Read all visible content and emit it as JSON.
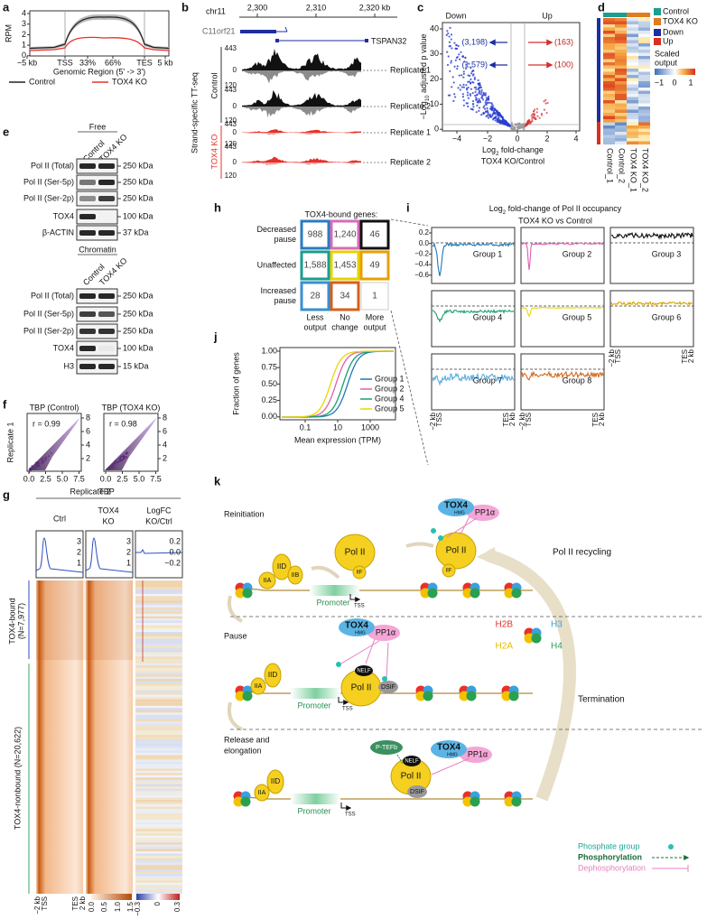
{
  "a": {
    "letter": "a",
    "ylabel": "RPM",
    "yticks": [
      "4",
      "3",
      "2",
      "1",
      "0"
    ],
    "xticks": [
      "−5 kb",
      "TSS",
      "33%",
      "66%",
      "TES",
      "5 kb"
    ],
    "xlabel": "Genomic Region (5' -> 3')",
    "legend": [
      {
        "name": "Control",
        "color": "#222222"
      },
      {
        "name": "TOX4 KO",
        "color": "#e8302a"
      }
    ]
  },
  "b": {
    "letter": "b",
    "chrom": "chr11",
    "coords": [
      "2,300",
      "2,310",
      "2,320 kb"
    ],
    "genes": [
      "C11orf21",
      "TSPAN32"
    ],
    "assay": "Strand-specific TT-seq",
    "groups": [
      "Control",
      "TOX4 KO"
    ],
    "tracks": [
      {
        "max": "443",
        "zero": "0",
        "min": "120",
        "name": "Replicate 1"
      },
      {
        "max": "443",
        "zero": "0",
        "min": "120",
        "name": "Replicate 2"
      },
      {
        "max": "443",
        "zero": "0",
        "min": "120",
        "name": "Replicate 1"
      },
      {
        "max": "443",
        "zero": "0",
        "min": "120",
        "name": "Replicate 2"
      }
    ]
  },
  "c": {
    "letter": "c",
    "down": "Down",
    "up": "Up",
    "ylabel": [
      "−Log",
      "10",
      " adjusted p value"
    ],
    "yticks": [
      "40",
      "30",
      "20",
      "10",
      "0"
    ],
    "xticks": [
      "−4",
      "−2",
      "0",
      "2",
      "4"
    ],
    "xlabel": [
      "Log",
      "2",
      " fold-change"
    ],
    "xlabel2": "TOX4 KO/Control",
    "counts": [
      "(3,198)",
      "(163)",
      "(1,579)",
      "(100)"
    ]
  },
  "d": {
    "letter": "d",
    "legend": [
      "Control",
      "TOX4 KO",
      "Down",
      "Up"
    ],
    "scale_title": [
      "Scaled",
      "output"
    ],
    "scale_ticks": [
      "−1",
      "0",
      "1"
    ],
    "columns": [
      "Control_1",
      "Control_2",
      "TOX4 KO_1",
      "TOX4 KO_2"
    ]
  },
  "e": {
    "letter": "e",
    "blots": [
      {
        "title": "Free",
        "lanes": [
          "Control",
          "TOX4 KO"
        ],
        "rows": [
          {
            "name": "Pol II (Total)",
            "size": "250 kDa"
          },
          {
            "name": "Pol II (Ser-5p)",
            "size": "250 kDa"
          },
          {
            "name": "Pol II (Ser-2p)",
            "size": "250 kDa"
          },
          {
            "name": "TOX4",
            "size": "100 kDa"
          },
          {
            "name": "β-ACTIN",
            "size": "37 kDa"
          }
        ]
      },
      {
        "title": "Chromatin",
        "lanes": [
          "Control",
          "TOX4 KO"
        ],
        "rows": [
          {
            "name": "Pol II (Total)",
            "size": "250 kDa"
          },
          {
            "name": "Pol II (Ser-5p)",
            "size": "250 kDa"
          },
          {
            "name": "Pol II (Ser-2p)",
            "size": "250 kDa"
          },
          {
            "name": "TOX4",
            "size": "100 kDa"
          },
          {
            "name": "H3",
            "size": "15 kDa"
          }
        ]
      }
    ]
  },
  "f": {
    "letter": "f",
    "plots": [
      {
        "title": "TBP (Control)",
        "r": "r = 0.99"
      },
      {
        "title": "TBP (TOX4 KO)",
        "r": "r = 0.98"
      }
    ],
    "yticks": [
      "2",
      "4",
      "6",
      "8"
    ],
    "xticks": [
      "0.0",
      "2.5",
      "5.0",
      "7.5"
    ],
    "ylabel": "Replicate 1",
    "xlabel": "Replicate 2"
  },
  "g": {
    "letter": "g",
    "factor": "TBP",
    "columns": [
      [
        "Ctrl"
      ],
      [
        "TOX4",
        "KO"
      ],
      [
        "LogFC",
        "KO/Ctrl"
      ]
    ],
    "profile_ticks": [
      [
        "3",
        "2",
        "1"
      ],
      [
        "0.2",
        "0.0",
        "−0.2"
      ]
    ],
    "rows": [
      [
        "TOX4-bound",
        "(N=7,977)"
      ],
      [
        "TOX4-nonbound (N=20,622)"
      ]
    ],
    "axis": [
      "−2 kb",
      "TSS",
      "TES",
      "2 kb"
    ],
    "scales": [
      [
        "0.0",
        "0.5",
        "1.0",
        "1.5"
      ],
      [
        "−0.3",
        "0",
        "0.3"
      ]
    ]
  },
  "h": {
    "letter": "h",
    "title": "TOX4-bound genes:",
    "rows": [
      [
        "Decreased",
        "pause"
      ],
      [
        "Unaffected"
      ],
      [
        "Increased",
        "pause"
      ]
    ],
    "cols": [
      [
        "Less",
        "output"
      ],
      [
        "No",
        "change"
      ],
      [
        "More",
        "output"
      ]
    ],
    "cells": [
      [
        "988",
        "1,240",
        "46"
      ],
      [
        "1,588",
        "1,453",
        "49"
      ],
      [
        "28",
        "34",
        "1"
      ]
    ]
  },
  "i": {
    "letter": "i",
    "title": [
      "Log",
      "2",
      " fold-change of Pol II occupancy"
    ],
    "subtitle": "TOX4 KO vs Control",
    "yticks": [
      "0.2",
      "0.0",
      "−0.2",
      "−0.4",
      "−0.6"
    ],
    "groups": [
      {
        "name": "Group 1",
        "color": "#1f78b4"
      },
      {
        "name": "Group 2",
        "color": "#e05fb0"
      },
      {
        "name": "Group 3",
        "color": "#111111"
      },
      {
        "name": "Group 4",
        "color": "#1a9e6f"
      },
      {
        "name": "Group 5",
        "color": "#e8d800"
      },
      {
        "name": "Group 6",
        "color": "#d9a300"
      },
      {
        "name": "Group 7",
        "color": "#5aace0"
      },
      {
        "name": "Group 8",
        "color": "#d2691e"
      }
    ],
    "axis": [
      "−2 kb",
      "TSS",
      "TES",
      "2 kb"
    ]
  },
  "j": {
    "letter": "j",
    "ylabel": "Fraction of genes",
    "yticks": [
      "1.00",
      "0.75",
      "0.50",
      "0.25",
      "0.00"
    ],
    "xticks": [
      "0.1",
      "10",
      "1000"
    ],
    "xlabel": "Mean expression (TPM)",
    "legend": [
      "Group 1",
      "Group 2",
      "Group 4",
      "Group 5"
    ]
  },
  "k": {
    "letter": "k",
    "stages": [
      "Reinitiation",
      "Pause",
      "Release and",
      "elongation"
    ],
    "recycling": "Pol II recycling",
    "termination": "Termination",
    "promoter": "Promoter",
    "tss": "TSS",
    "tox4": "TOX4",
    "hmg": "HMG",
    "pp1": "PP1α",
    "pol2": "Pol II",
    "factors": [
      "IIF",
      "IID",
      "IIA",
      "IIB",
      "NELF",
      "DSIF",
      "P-TEFb"
    ],
    "histones": [
      "H2B",
      "H3",
      "H2A",
      "H4"
    ],
    "legend": [
      "Phosphate group",
      "Phosphorylation",
      "Dephosphorylation"
    ]
  }
}
